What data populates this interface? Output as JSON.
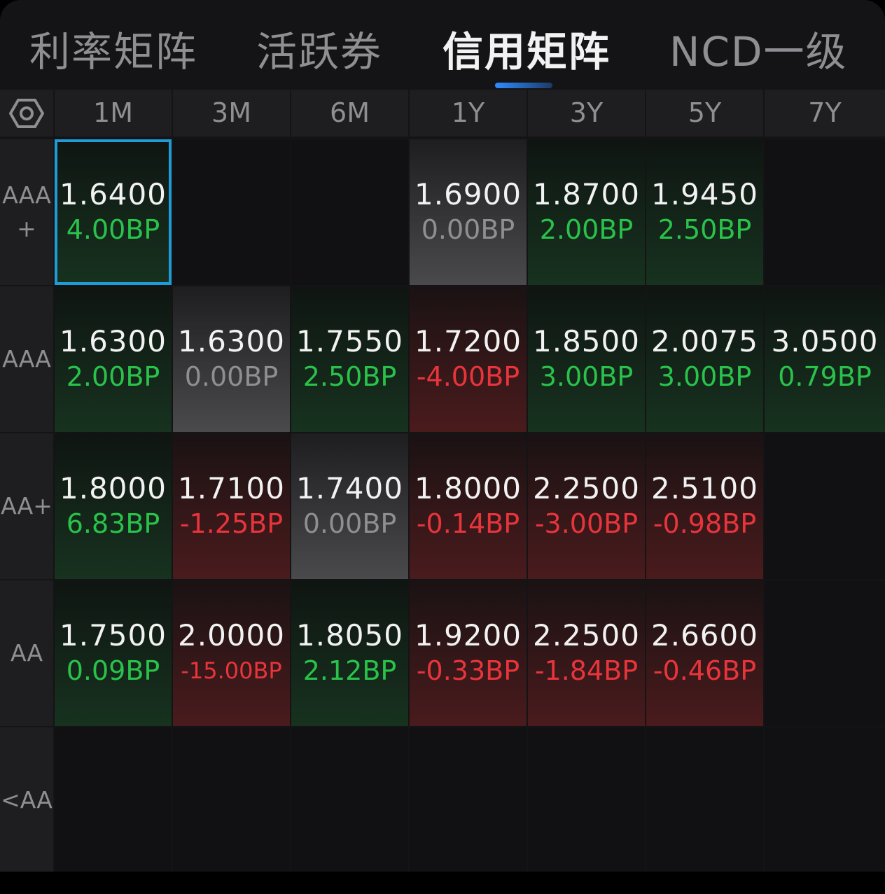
{
  "tabs": [
    {
      "label": "利率矩阵",
      "active": false
    },
    {
      "label": "活跃券",
      "active": false
    },
    {
      "label": "信用矩阵",
      "active": true
    },
    {
      "label": "NCD一级",
      "active": false
    }
  ],
  "settings_icon": "hexagon-settings-icon",
  "tenors": [
    "1M",
    "3M",
    "6M",
    "1Y",
    "3Y",
    "5Y",
    "7Y"
  ],
  "rows": [
    {
      "label": "AAA+",
      "cells": [
        {
          "rate": "1.6400",
          "change": "4.00BP",
          "dir": "up",
          "selected": true
        },
        null,
        null,
        {
          "rate": "1.6900",
          "change": "0.00BP",
          "dir": "flat"
        },
        {
          "rate": "1.8700",
          "change": "2.00BP",
          "dir": "up"
        },
        {
          "rate": "1.9450",
          "change": "2.50BP",
          "dir": "up"
        },
        null
      ]
    },
    {
      "label": "AAA",
      "cells": [
        {
          "rate": "1.6300",
          "change": "2.00BP",
          "dir": "up"
        },
        {
          "rate": "1.6300",
          "change": "0.00BP",
          "dir": "flat"
        },
        {
          "rate": "1.7550",
          "change": "2.50BP",
          "dir": "up"
        },
        {
          "rate": "1.7200",
          "change": "-4.00BP",
          "dir": "down"
        },
        {
          "rate": "1.8500",
          "change": "3.00BP",
          "dir": "up"
        },
        {
          "rate": "2.0075",
          "change": "3.00BP",
          "dir": "up"
        },
        {
          "rate": "3.0500",
          "change": "0.79BP",
          "dir": "up"
        }
      ]
    },
    {
      "label": "AA+",
      "cells": [
        {
          "rate": "1.8000",
          "change": "6.83BP",
          "dir": "up"
        },
        {
          "rate": "1.7100",
          "change": "-1.25BP",
          "dir": "down"
        },
        {
          "rate": "1.7400",
          "change": "0.00BP",
          "dir": "flat"
        },
        {
          "rate": "1.8000",
          "change": "-0.14BP",
          "dir": "down"
        },
        {
          "rate": "2.2500",
          "change": "-3.00BP",
          "dir": "down"
        },
        {
          "rate": "2.5100",
          "change": "-0.98BP",
          "dir": "down"
        },
        null
      ]
    },
    {
      "label": "AA",
      "cells": [
        {
          "rate": "1.7500",
          "change": "0.09BP",
          "dir": "up"
        },
        {
          "rate": "2.0000",
          "change": "-15.00BP",
          "dir": "down"
        },
        {
          "rate": "1.8050",
          "change": "2.12BP",
          "dir": "up"
        },
        {
          "rate": "1.9200",
          "change": "-0.33BP",
          "dir": "down"
        },
        {
          "rate": "2.2500",
          "change": "-1.84BP",
          "dir": "down"
        },
        {
          "rate": "2.6600",
          "change": "-0.46BP",
          "dir": "down"
        },
        null
      ]
    },
    {
      "label": "<AA",
      "cells": [
        null,
        null,
        null,
        null,
        null,
        null,
        null
      ]
    }
  ],
  "colors": {
    "up": "#29c24a",
    "down": "#e8343b",
    "flat": "#8e8e93",
    "accent": "#1f9bd8"
  }
}
